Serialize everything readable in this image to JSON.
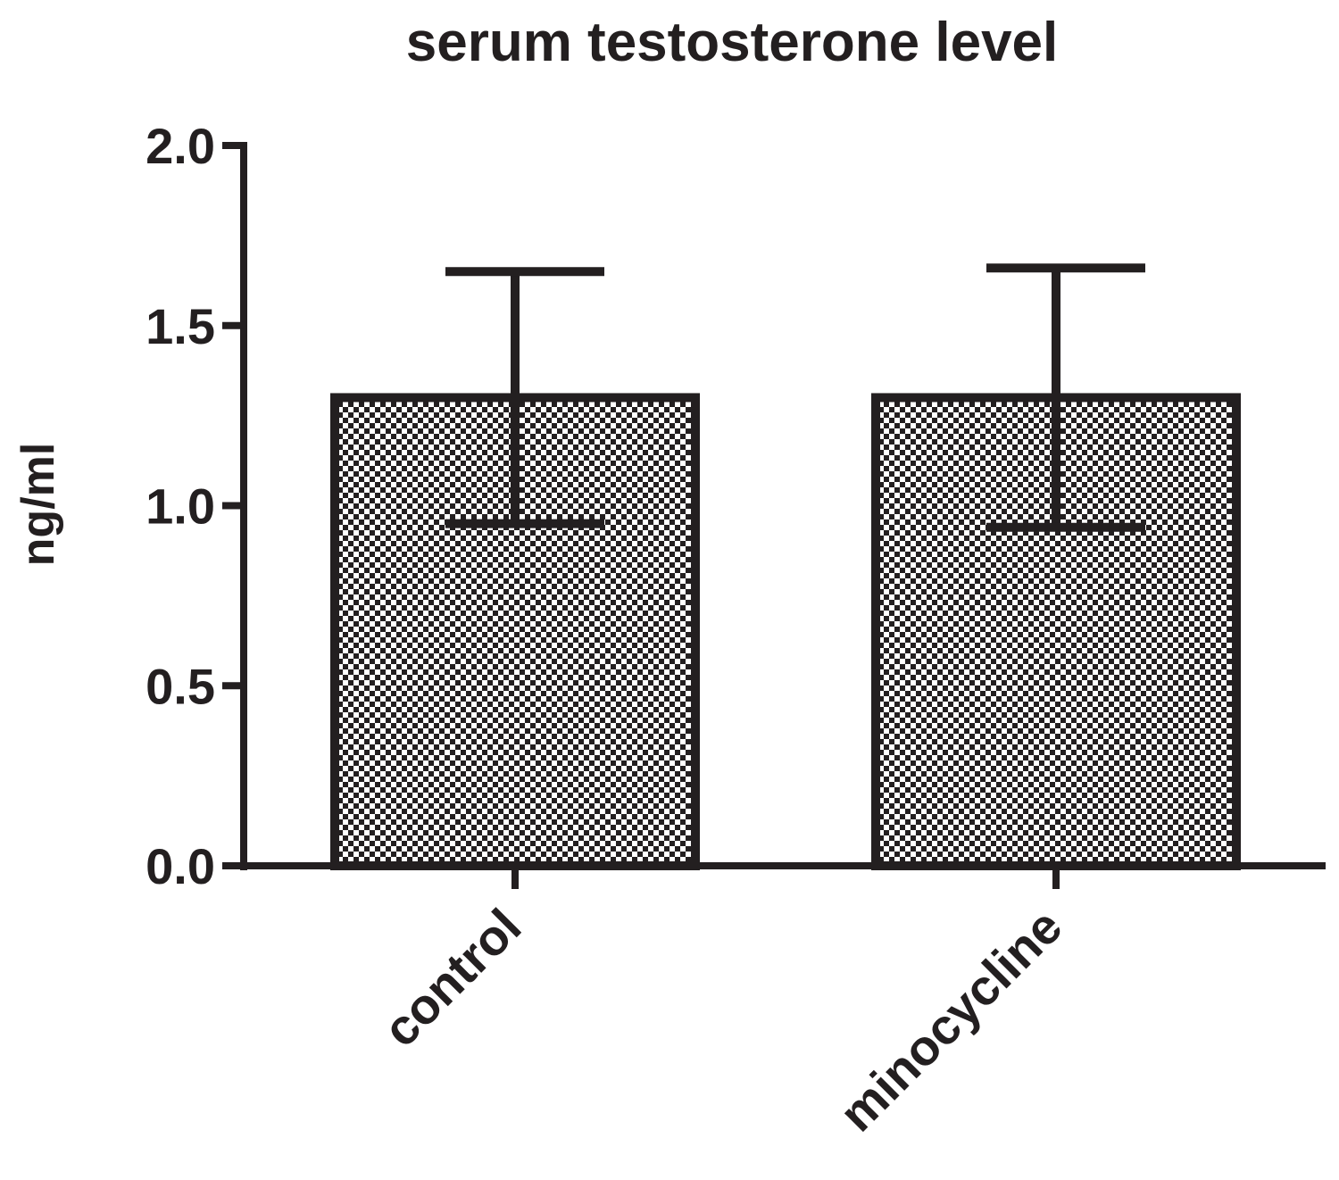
{
  "chart_data": {
    "type": "bar",
    "title": "serum testosterone level",
    "xlabel": "",
    "ylabel": "ng/ml",
    "categories": [
      "control",
      "minocycline"
    ],
    "values": [
      1.3,
      1.3
    ],
    "error": [
      0.35,
      0.36
    ],
    "ylim": [
      0,
      2.0
    ],
    "yticks": [
      "0.0",
      "0.5",
      "1.0",
      "1.5",
      "2.0"
    ],
    "grid": false,
    "legend": "none",
    "bar_fill": "black-and-white checkered pattern",
    "colors": {
      "ink": "#231f20",
      "background": "#ffffff"
    }
  }
}
